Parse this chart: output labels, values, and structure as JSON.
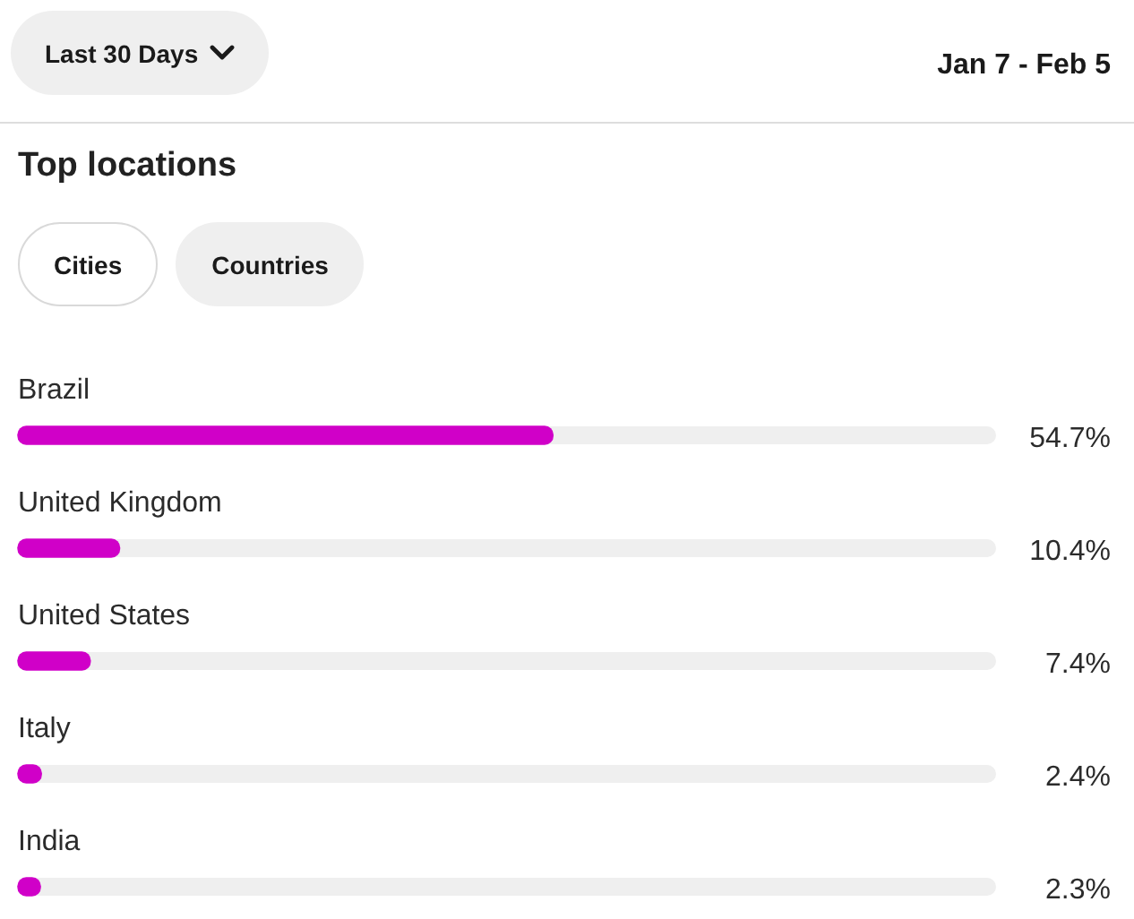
{
  "chart_data": {
    "type": "bar",
    "orientation": "horizontal",
    "title": "Top locations",
    "subtitle": "Jan 7 - Feb 5",
    "annotations": [
      "Last 30 Days",
      "Cities",
      "Countries"
    ],
    "categories": [
      "Brazil",
      "United Kingdom",
      "United States",
      "Italy",
      "India"
    ],
    "values": [
      54.7,
      10.4,
      7.4,
      2.4,
      2.3
    ],
    "value_labels": [
      "54.7%",
      "10.4%",
      "7.4%",
      "2.4%",
      "2.3%"
    ],
    "color": "#d000c8",
    "xlim": [
      0,
      100
    ],
    "tick_labels": "y"
  }
}
